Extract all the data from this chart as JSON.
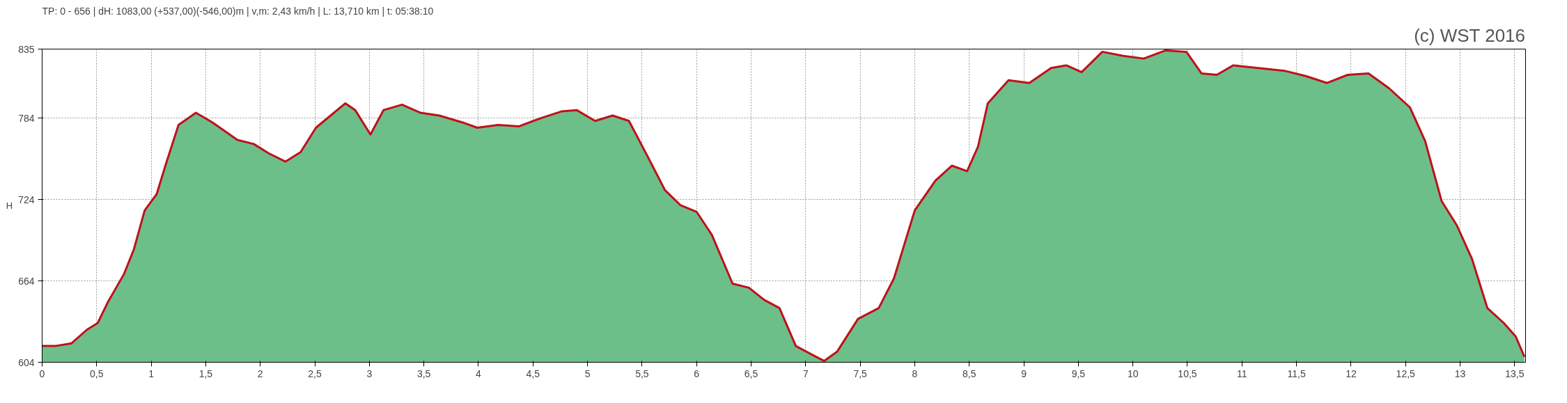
{
  "chart_data": {
    "type": "area",
    "title": "TP: 0 - 656 | dH: 1083,00  (+537,00)(-546,00)m | v,m: 2,43 km/h | L: 13,710 km | t: 05:38:10",
    "ylabel": "H",
    "annotations": [
      "(c) WST 2016"
    ],
    "series": [
      {
        "color": "#6dbf8a",
        "x": [
          0,
          0.12,
          0.27,
          0.41,
          0.51,
          0.6,
          0.75,
          0.84,
          0.94,
          1.05,
          1.13,
          1.25,
          1.41,
          1.56,
          1.79,
          1.94,
          2.08,
          2.23,
          2.37,
          2.51,
          2.66,
          2.78,
          2.87,
          3.01,
          3.13,
          3.3,
          3.47,
          3.64,
          3.85,
          3.99,
          4.18,
          4.37,
          4.57,
          4.76,
          4.9,
          5.07,
          5.23,
          5.38,
          5.55,
          5.71,
          5.85,
          6.0,
          6.14,
          6.33,
          6.48,
          6.62,
          6.76,
          6.91,
          7.05,
          7.17,
          7.29,
          7.48,
          7.67,
          7.81,
          8.0,
          8.19,
          8.34,
          8.48,
          8.58,
          8.67,
          8.86,
          9.05,
          9.25,
          9.39,
          9.53,
          9.72,
          9.91,
          10.1,
          10.3,
          10.49,
          10.63,
          10.77,
          10.92,
          11.15,
          11.39,
          11.59,
          11.78,
          11.97,
          12.16,
          12.35,
          12.54,
          12.68,
          12.83,
          12.97,
          13.11,
          13.25,
          13.4,
          13.51,
          13.59
        ],
        "values": [
          616,
          616,
          618,
          628,
          633,
          648,
          669,
          687,
          716,
          728,
          749,
          779,
          788,
          781,
          768,
          765,
          758,
          752,
          759,
          777,
          787,
          795,
          790,
          772,
          790,
          794,
          788,
          786,
          781,
          777,
          779,
          778,
          784,
          789,
          790,
          782,
          786,
          782,
          756,
          731,
          720,
          715,
          698,
          662,
          659,
          650,
          644,
          616,
          610,
          605,
          612,
          636,
          644,
          666,
          716,
          738,
          749,
          745,
          763,
          795,
          812,
          810,
          821,
          823,
          818,
          833,
          830,
          828,
          834,
          833,
          817,
          816,
          823,
          821,
          819,
          815,
          810,
          816,
          817,
          806,
          792,
          767,
          723,
          705,
          680,
          644,
          633,
          623,
          608
        ]
      },
      {
        "type": "line",
        "color": "#c0101a",
        "x": [
          0,
          0.12,
          0.27,
          0.41,
          0.51,
          0.6,
          0.75,
          0.84,
          0.94,
          1.05,
          1.13,
          1.25,
          1.41,
          1.56,
          1.79,
          1.94,
          2.08,
          2.23,
          2.37,
          2.51,
          2.66,
          2.78,
          2.87,
          3.01,
          3.13,
          3.3,
          3.47,
          3.64,
          3.85,
          3.99,
          4.18,
          4.37,
          4.57,
          4.76,
          4.9,
          5.07,
          5.23,
          5.38,
          5.55,
          5.71,
          5.85,
          6.0,
          6.14,
          6.33,
          6.48,
          6.62,
          6.76,
          6.91,
          7.05,
          7.17,
          7.29,
          7.48,
          7.67,
          7.81,
          8.0,
          8.19,
          8.34,
          8.48,
          8.58,
          8.67,
          8.86,
          9.05,
          9.25,
          9.39,
          9.53,
          9.72,
          9.91,
          10.1,
          10.3,
          10.49,
          10.63,
          10.77,
          10.92,
          11.15,
          11.39,
          11.59,
          11.78,
          11.97,
          12.16,
          12.35,
          12.54,
          12.68,
          12.83,
          12.97,
          13.11,
          13.25,
          13.4,
          13.51,
          13.59
        ],
        "values": [
          616,
          616,
          618,
          628,
          633,
          648,
          669,
          687,
          716,
          728,
          749,
          779,
          788,
          781,
          768,
          765,
          758,
          752,
          759,
          777,
          787,
          795,
          790,
          772,
          790,
          794,
          788,
          786,
          781,
          777,
          779,
          778,
          784,
          789,
          790,
          782,
          786,
          782,
          756,
          731,
          720,
          715,
          698,
          662,
          659,
          650,
          644,
          616,
          610,
          605,
          612,
          636,
          644,
          666,
          716,
          738,
          749,
          745,
          763,
          795,
          812,
          810,
          821,
          823,
          818,
          833,
          830,
          828,
          834,
          833,
          817,
          816,
          823,
          821,
          819,
          815,
          810,
          816,
          817,
          806,
          792,
          767,
          723,
          705,
          680,
          644,
          633,
          623,
          608
        ]
      }
    ],
    "xlim": [
      0,
      13.6
    ],
    "ylim": [
      604,
      835
    ],
    "yticks": [
      604,
      664,
      724,
      784,
      835
    ],
    "xticks": [
      0,
      {
        "value": 0.5,
        "label": "0,5"
      },
      1,
      {
        "value": 1.5,
        "label": "1,5"
      },
      2,
      {
        "value": 2.5,
        "label": "2,5"
      },
      3,
      {
        "value": 3.5,
        "label": "3,5"
      },
      4,
      {
        "value": 4.5,
        "label": "4,5"
      },
      5,
      {
        "value": 5.5,
        "label": "5,5"
      },
      6,
      {
        "value": 6.5,
        "label": "6,5"
      },
      7,
      {
        "value": 7.5,
        "label": "7,5"
      },
      8,
      {
        "value": 8.5,
        "label": "8,5"
      },
      9,
      {
        "value": 9.5,
        "label": "9,5"
      },
      10,
      {
        "value": 10.5,
        "label": "10,5"
      },
      11,
      {
        "value": 11.5,
        "label": "11,5"
      },
      12,
      {
        "value": 12.5,
        "label": "12,5"
      },
      13,
      {
        "value": 13.5,
        "label": "13,5"
      }
    ],
    "grid": true,
    "marker": "none",
    "line_style": "solid"
  }
}
